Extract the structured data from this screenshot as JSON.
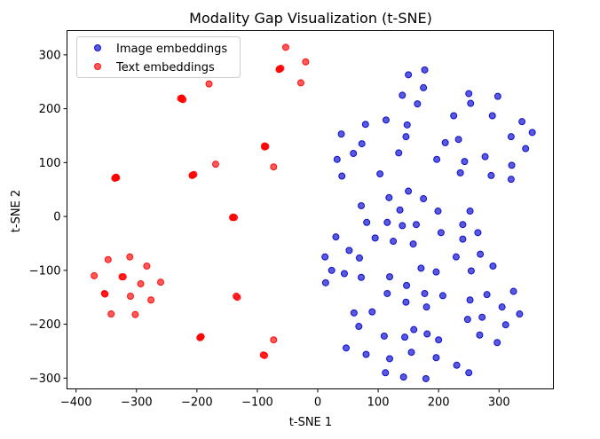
{
  "chart_data": {
    "type": "scatter",
    "title": "Modality Gap Visualization (t-SNE)",
    "xlabel": "t-SNE 1",
    "ylabel": "t-SNE 2",
    "xlim": [
      -415,
      390
    ],
    "ylim": [
      -320,
      345
    ],
    "xticks": [
      -400,
      -300,
      -200,
      -100,
      0,
      100,
      200,
      300
    ],
    "yticks": [
      -300,
      -200,
      -100,
      0,
      100,
      200,
      300
    ],
    "xtick_labels": [
      "−400",
      "−300",
      "−200",
      "−100",
      "0",
      "100",
      "200",
      "300"
    ],
    "ytick_labels": [
      "−300",
      "−200",
      "−100",
      "0",
      "100",
      "200",
      "300"
    ],
    "grid": false,
    "legend_position": "top-left",
    "series": [
      {
        "name": "Image embeddings",
        "color": "#0000cc",
        "points": [
          [
            150,
            263
          ],
          [
            177,
            272
          ],
          [
            140,
            225
          ],
          [
            165,
            209
          ],
          [
            175,
            239
          ],
          [
            250,
            228
          ],
          [
            298,
            223
          ],
          [
            253,
            210
          ],
          [
            225,
            187
          ],
          [
            289,
            187
          ],
          [
            79,
            171
          ],
          [
            113,
            179
          ],
          [
            148,
            170
          ],
          [
            338,
            176
          ],
          [
            355,
            156
          ],
          [
            39,
            153
          ],
          [
            146,
            148
          ],
          [
            73,
            135
          ],
          [
            211,
            137
          ],
          [
            233,
            143
          ],
          [
            320,
            148
          ],
          [
            59,
            117
          ],
          [
            134,
            118
          ],
          [
            277,
            111
          ],
          [
            197,
            106
          ],
          [
            32,
            106
          ],
          [
            243,
            102
          ],
          [
            321,
            95
          ],
          [
            344,
            126
          ],
          [
            40,
            75
          ],
          [
            103,
            79
          ],
          [
            236,
            81
          ],
          [
            287,
            76
          ],
          [
            320,
            69
          ],
          [
            150,
            47
          ],
          [
            118,
            35
          ],
          [
            175,
            33
          ],
          [
            72,
            20
          ],
          [
            136,
            12
          ],
          [
            199,
            10
          ],
          [
            252,
            10
          ],
          [
            81,
            -11
          ],
          [
            115,
            -11
          ],
          [
            140,
            -17
          ],
          [
            163,
            -15
          ],
          [
            240,
            -15
          ],
          [
            204,
            -30
          ],
          [
            265,
            -30
          ],
          [
            30,
            -38
          ],
          [
            95,
            -40
          ],
          [
            125,
            -46
          ],
          [
            158,
            -51
          ],
          [
            240,
            -42
          ],
          [
            52,
            -63
          ],
          [
            69,
            -77
          ],
          [
            269,
            -70
          ],
          [
            229,
            -75
          ],
          [
            290,
            -92
          ],
          [
            12,
            -75
          ],
          [
            23,
            -100
          ],
          [
            44,
            -106
          ],
          [
            171,
            -96
          ],
          [
            196,
            -103
          ],
          [
            254,
            -101
          ],
          [
            119,
            -112
          ],
          [
            13,
            -123
          ],
          [
            72,
            -113
          ],
          [
            147,
            -128
          ],
          [
            115,
            -143
          ],
          [
            207,
            -147
          ],
          [
            177,
            -143
          ],
          [
            252,
            -155
          ],
          [
            280,
            -145
          ],
          [
            324,
            -139
          ],
          [
            146,
            -159
          ],
          [
            180,
            -168
          ],
          [
            305,
            -168
          ],
          [
            90,
            -177
          ],
          [
            60,
            -179
          ],
          [
            272,
            -187
          ],
          [
            248,
            -191
          ],
          [
            334,
            -181
          ],
          [
            68,
            -204
          ],
          [
            159,
            -210
          ],
          [
            311,
            -201
          ],
          [
            110,
            -222
          ],
          [
            144,
            -224
          ],
          [
            181,
            -218
          ],
          [
            268,
            -220
          ],
          [
            200,
            -229
          ],
          [
            47,
            -244
          ],
          [
            297,
            -234
          ],
          [
            80,
            -256
          ],
          [
            155,
            -252
          ],
          [
            119,
            -264
          ],
          [
            196,
            -262
          ],
          [
            230,
            -276
          ],
          [
            112,
            -290
          ],
          [
            142,
            -298
          ],
          [
            179,
            -301
          ],
          [
            250,
            -290
          ]
        ]
      },
      {
        "name": "Text embeddings",
        "color": "#ff0000",
        "points": [
          [
            -53,
            314
          ],
          [
            -20,
            287
          ],
          [
            -63,
            274
          ],
          [
            -64,
            273
          ],
          [
            -61,
            275
          ],
          [
            -28,
            248
          ],
          [
            -180,
            246
          ],
          [
            -225,
            218
          ],
          [
            -227,
            219
          ],
          [
            -223,
            217
          ],
          [
            -225,
            220
          ],
          [
            -88,
            131
          ],
          [
            -86,
            130
          ],
          [
            -88,
            129
          ],
          [
            -169,
            97
          ],
          [
            -73,
            92
          ],
          [
            -335,
            72
          ],
          [
            -333,
            72
          ],
          [
            -336,
            71
          ],
          [
            -334,
            73
          ],
          [
            -207,
            77
          ],
          [
            -205,
            78
          ],
          [
            -208,
            76
          ],
          [
            -140,
            -1
          ],
          [
            -138,
            -2
          ],
          [
            -141,
            -2
          ],
          [
            -347,
            -80
          ],
          [
            -311,
            -75
          ],
          [
            -283,
            -92
          ],
          [
            -370,
            -110
          ],
          [
            -324,
            -112
          ],
          [
            -322,
            -112
          ],
          [
            -260,
            -122
          ],
          [
            -293,
            -125
          ],
          [
            -353,
            -143
          ],
          [
            -352,
            -144
          ],
          [
            -310,
            -148
          ],
          [
            -276,
            -155
          ],
          [
            -135,
            -148
          ],
          [
            -133,
            -150
          ],
          [
            -342,
            -181
          ],
          [
            -302,
            -182
          ],
          [
            -194,
            -224
          ],
          [
            -195,
            -225
          ],
          [
            -193,
            -223
          ],
          [
            -73,
            -229
          ],
          [
            -90,
            -257
          ],
          [
            -88,
            -258
          ]
        ]
      }
    ]
  }
}
